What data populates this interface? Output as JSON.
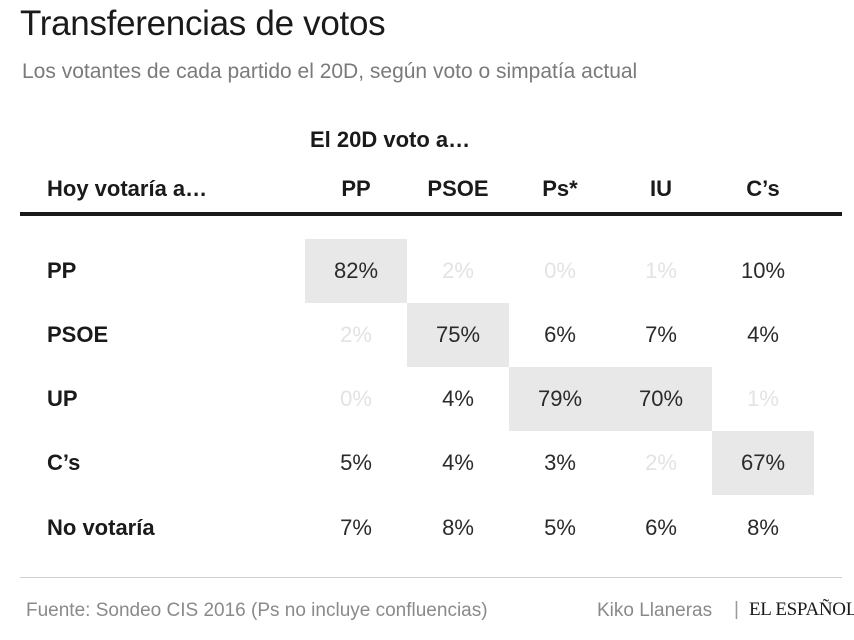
{
  "header": {
    "title": "Transferencias de votos",
    "subtitle": "Los votantes de cada partido el 20D, según voto o simpatía actual"
  },
  "chart_data": {
    "type": "table",
    "title": "Transferencias de votos",
    "subtitle": "Los votantes de cada partido el 20D, según voto o simpatía actual",
    "column_group_label": "El 20D voto a…",
    "row_header_label": "Hoy votaría a…",
    "columns": [
      "PP",
      "PSOE",
      "Ps*",
      "IU",
      "C’s"
    ],
    "rows": [
      {
        "label": "PP",
        "values": [
          "82%",
          "2%",
          "0%",
          "1%",
          "10%"
        ],
        "faint": [
          false,
          true,
          true,
          true,
          false
        ],
        "highlight": [
          true,
          false,
          false,
          false,
          false
        ]
      },
      {
        "label": "PSOE",
        "values": [
          "2%",
          "75%",
          "6%",
          "7%",
          "4%"
        ],
        "faint": [
          true,
          false,
          false,
          false,
          false
        ],
        "highlight": [
          false,
          true,
          false,
          false,
          false
        ]
      },
      {
        "label": "UP",
        "values": [
          "0%",
          "4%",
          "79%",
          "70%",
          "1%"
        ],
        "faint": [
          true,
          false,
          false,
          false,
          true
        ],
        "highlight": [
          false,
          false,
          true,
          true,
          false
        ]
      },
      {
        "label": "C’s",
        "values": [
          "5%",
          "4%",
          "3%",
          "2%",
          "67%"
        ],
        "faint": [
          false,
          false,
          false,
          true,
          false
        ],
        "highlight": [
          false,
          false,
          false,
          false,
          true
        ]
      },
      {
        "label": "No votaría",
        "values": [
          "7%",
          "8%",
          "5%",
          "6%",
          "8%"
        ],
        "faint": [
          false,
          false,
          false,
          false,
          false
        ],
        "highlight": [
          false,
          false,
          false,
          false,
          false
        ]
      }
    ]
  },
  "footer": {
    "source": "Fuente: Sondeo CIS 2016 (Ps no incluye confluencias)",
    "author": "Kiko Llaneras",
    "separator": "|",
    "brand": "EL ESPAÑOL"
  },
  "colors": {
    "highlight_bg": "#e8e8e8",
    "faint_text": "#e3e3e3",
    "rule": "#1a1a1a"
  }
}
